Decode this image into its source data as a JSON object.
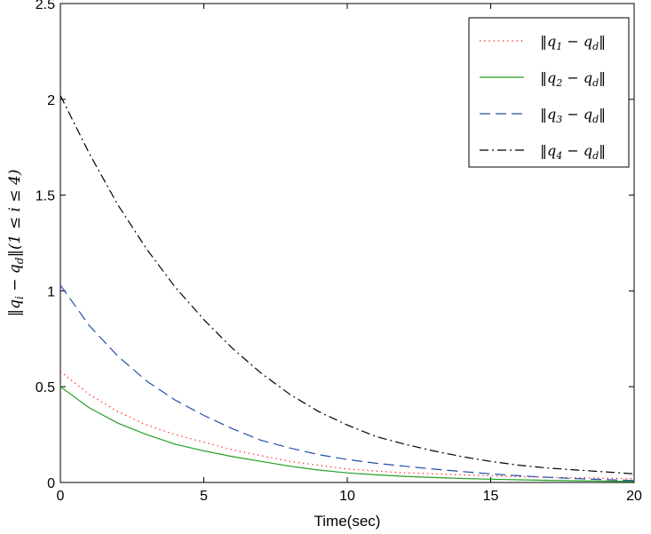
{
  "chart_data": {
    "type": "line",
    "xlabel": "Time(sec)",
    "ylabel": "||q_i − q_d||(1 ≤ i ≤ 4)",
    "xlim": [
      0,
      20
    ],
    "ylim": [
      0,
      2.5
    ],
    "xticks": [
      0,
      5,
      10,
      15,
      20
    ],
    "xtick_labels": [
      "0",
      "5",
      "10",
      "15",
      "20"
    ],
    "yticks": [
      0,
      0.5,
      1,
      1.5,
      2,
      2.5
    ],
    "ytick_labels": [
      "0",
      "0.5",
      "1",
      "1.5",
      "2",
      "2.5"
    ],
    "grid": false,
    "legend_position": "top-right",
    "x": [
      0,
      1,
      2,
      3,
      4,
      5,
      6,
      7,
      8,
      9,
      10,
      11,
      12,
      13,
      14,
      15,
      16,
      17,
      18,
      19,
      20
    ],
    "series": [
      {
        "name": "||q_1 − q_d||",
        "color": "#ff0000",
        "style": "dotted",
        "values": [
          0.58,
          0.46,
          0.37,
          0.3,
          0.25,
          0.21,
          0.17,
          0.14,
          0.11,
          0.09,
          0.07,
          0.06,
          0.05,
          0.045,
          0.04,
          0.035,
          0.03,
          0.027,
          0.025,
          0.022,
          0.02
        ]
      },
      {
        "name": "||q_2 − q_d||",
        "color": "#22a022",
        "style": "solid",
        "values": [
          0.5,
          0.39,
          0.31,
          0.25,
          0.2,
          0.165,
          0.135,
          0.11,
          0.085,
          0.065,
          0.05,
          0.04,
          0.032,
          0.026,
          0.021,
          0.017,
          0.014,
          0.011,
          0.009,
          0.007,
          0.005
        ]
      },
      {
        "name": "||q_3 − q_d||",
        "color": "#1f4fa8",
        "style": "dashed",
        "values": [
          1.03,
          0.82,
          0.66,
          0.53,
          0.43,
          0.35,
          0.28,
          0.22,
          0.18,
          0.145,
          0.12,
          0.1,
          0.085,
          0.07,
          0.057,
          0.045,
          0.035,
          0.027,
          0.02,
          0.015,
          0.01
        ]
      },
      {
        "name": "||q_4 − q_d||",
        "color": "#000000",
        "style": "dashdot",
        "values": [
          2.02,
          1.72,
          1.45,
          1.22,
          1.02,
          0.85,
          0.7,
          0.57,
          0.46,
          0.37,
          0.3,
          0.24,
          0.2,
          0.165,
          0.135,
          0.11,
          0.09,
          0.075,
          0.065,
          0.055,
          0.045
        ]
      }
    ],
    "legend_entries": [
      {
        "sub": "1",
        "text_pre": "‖q",
        "text_post": " − q"
      },
      {
        "sub": "2",
        "text_pre": "‖q",
        "text_post": " − q"
      },
      {
        "sub": "3",
        "text_pre": "‖q",
        "text_post": " − q"
      },
      {
        "sub": "4",
        "text_pre": "‖q",
        "text_post": " − q"
      }
    ]
  }
}
